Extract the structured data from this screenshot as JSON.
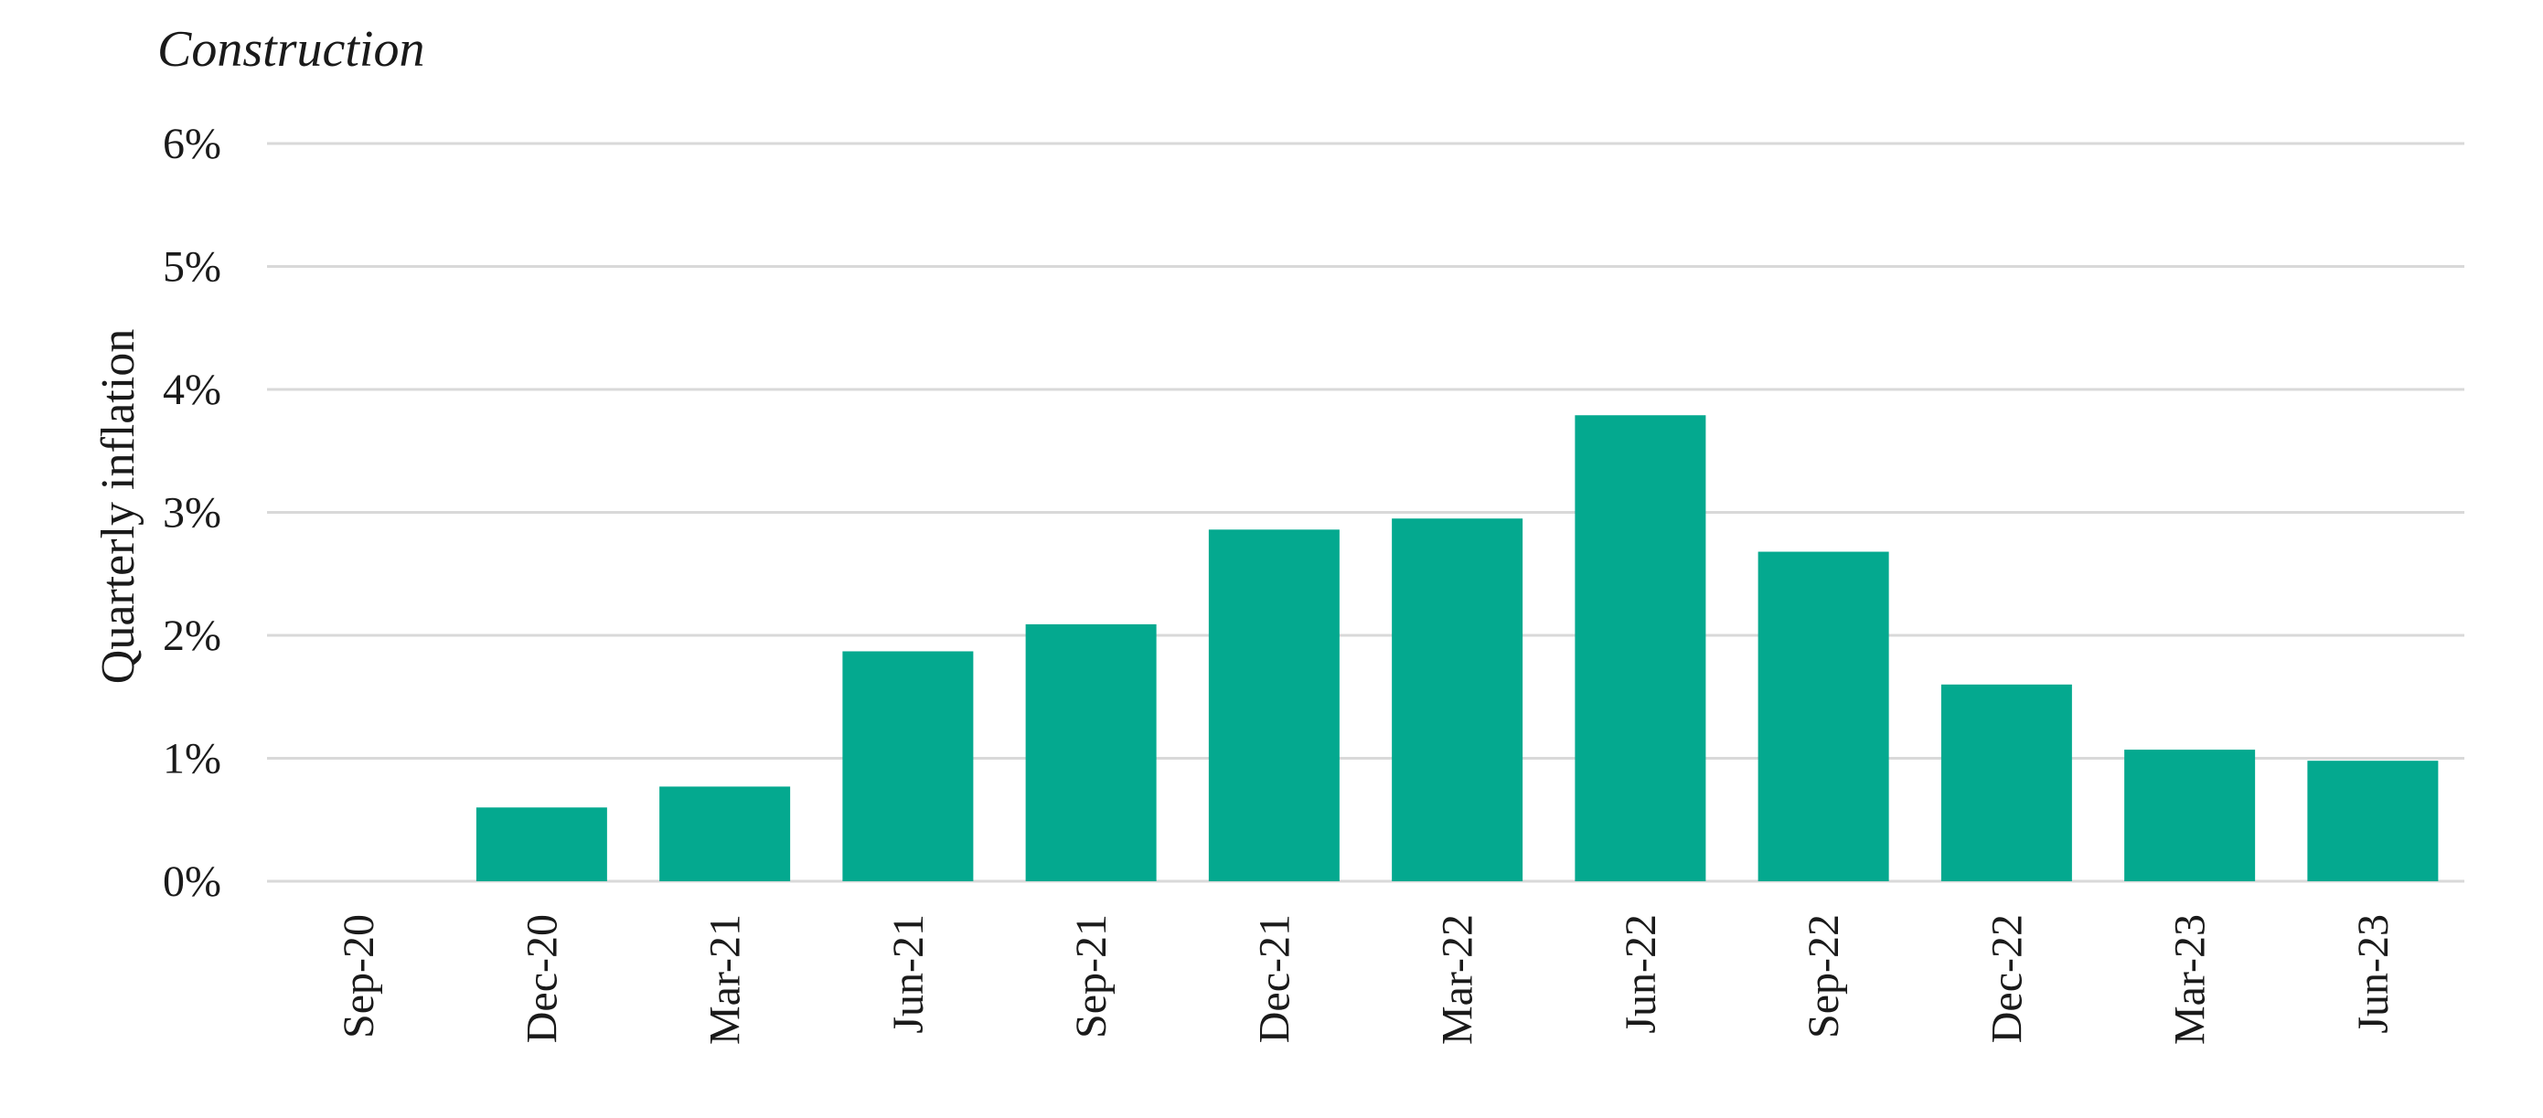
{
  "chart_data": {
    "type": "bar",
    "title": "Construction",
    "xlabel": "",
    "ylabel": "Quarterly inflation",
    "categories": [
      "Sep-20",
      "Dec-20",
      "Mar-21",
      "Jun-21",
      "Sep-21",
      "Dec-21",
      "Mar-22",
      "Jun-22",
      "Sep-22",
      "Dec-22",
      "Mar-23",
      "Jun-23"
    ],
    "values": [
      0,
      0.6,
      0.77,
      1.87,
      2.09,
      2.86,
      2.95,
      3.79,
      2.68,
      1.6,
      1.07,
      0.98
    ],
    "ylim": [
      0,
      6
    ],
    "yticks": [
      "0%",
      "1%",
      "2%",
      "3%",
      "4%",
      "5%",
      "6%"
    ],
    "grid": true,
    "legend": "none",
    "colors": {
      "bar": "#04A98F",
      "grid": "#D9D9D9",
      "text": "#1A1A1A"
    }
  }
}
